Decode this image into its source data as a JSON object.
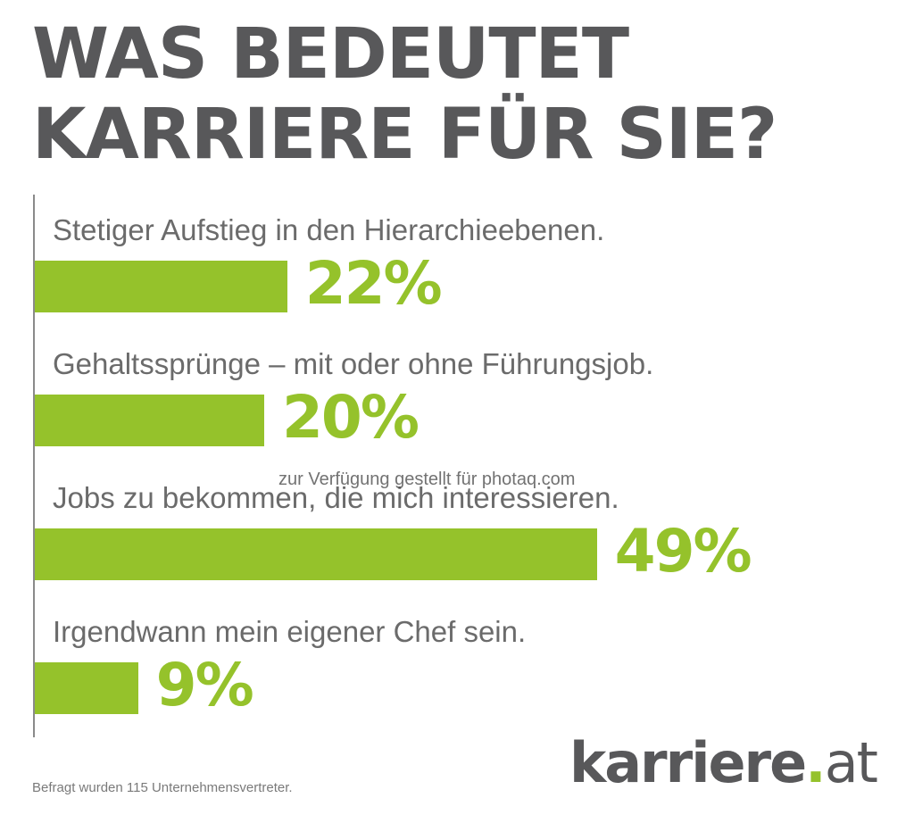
{
  "title": {
    "line1": "WAS BEDEUTET",
    "line2": "KARRIERE FÜR SIE?"
  },
  "chart_data": {
    "type": "bar",
    "orientation": "horizontal",
    "title": "WAS BEDEUTET KARRIERE FÜR SIE?",
    "categories": [
      "Stetiger Aufstieg in den Hierarchieebenen.",
      "Gehaltssprünge – mit oder ohne Führungsjob.",
      "Jobs zu bekommen, die mich interessieren.",
      "Irgendwann mein eigener Chef sein."
    ],
    "values": [
      22,
      20,
      49,
      9
    ],
    "value_labels": [
      "22%",
      "20%",
      "49%",
      "9%"
    ],
    "unit": "%",
    "xlim": [
      0,
      80
    ],
    "grid": false,
    "bar_color": "#95c22b"
  },
  "watermark": "zur Verfügung gestellt für photaq.com",
  "footnote": "Befragt wurden 115 Unternehmensvertreter.",
  "logo": {
    "main": "karriere",
    "dot": ".",
    "tld": "at"
  },
  "colors": {
    "accent": "#95c22b",
    "title": "#58585a",
    "label": "#6b6b6b"
  }
}
